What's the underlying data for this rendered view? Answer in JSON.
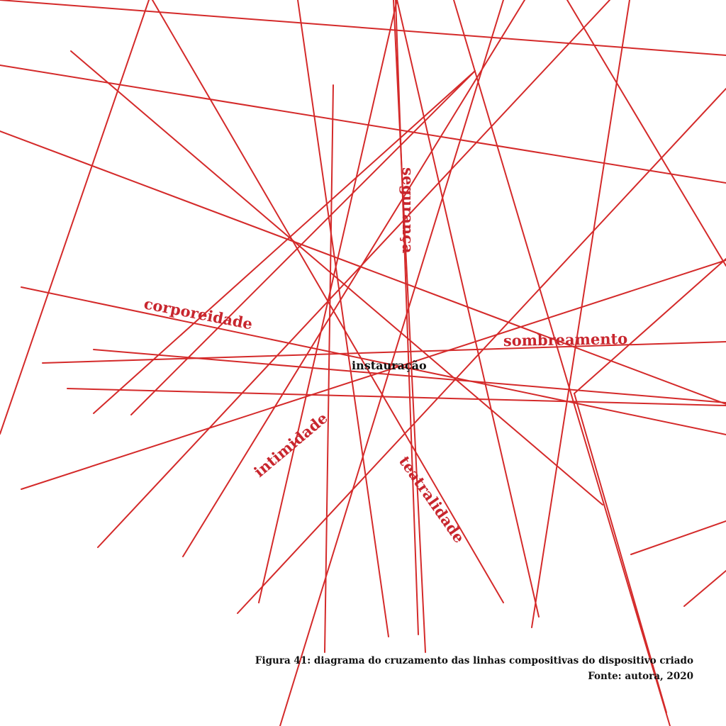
{
  "diagram": {
    "labels": {
      "seguranca": "segurança",
      "corporeidade": "corporeidade",
      "sombreamento": "sombreamento",
      "instauracao": "instauração",
      "intimidade": "intimidade",
      "teatralidade": "teatralidade"
    },
    "line_color": "#d42a2a",
    "label_color": "#c8262e"
  },
  "caption": {
    "figure": "Figura 41: diagrama do cruzamento das linhas compositivas do dispositivo criado",
    "source": "Fonte: autora, 2020"
  }
}
